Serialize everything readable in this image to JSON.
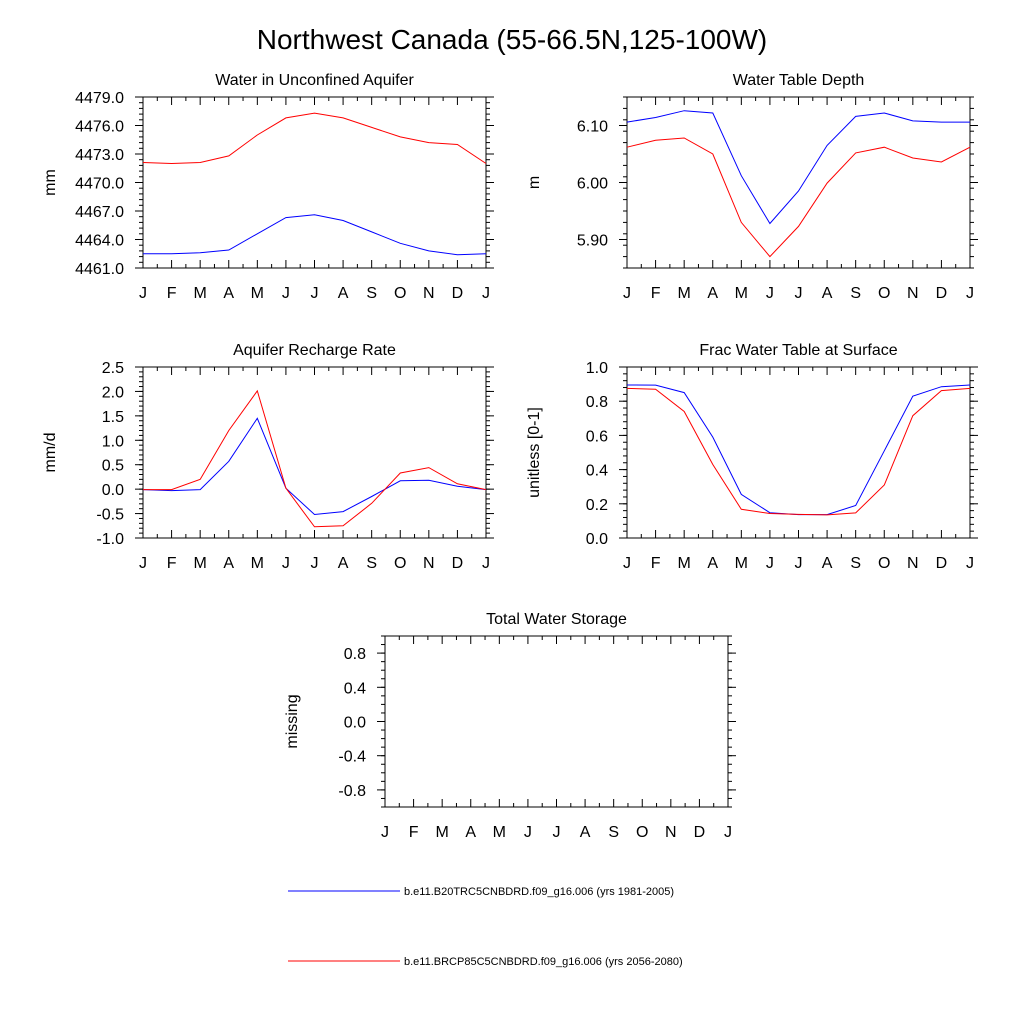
{
  "figure_title": "Northwest Canada (55-66.5N,125-100W)",
  "legend": [
    {
      "label": "b.e11.B20TRC5CNBDRD.f09_g16.006 (yrs 1981-2005)",
      "color": "#0000ff"
    },
    {
      "label": "b.e11.BRCP85C5CNBDRD.f09_g16.006 (yrs 2056-2080)",
      "color": "#ff0000"
    }
  ],
  "chart_data": [
    {
      "type": "line",
      "title": "Water in Unconfined Aquifer",
      "ylabel": "mm",
      "xlabel": "",
      "categories": [
        "J",
        "F",
        "M",
        "A",
        "M",
        "J",
        "J",
        "A",
        "S",
        "O",
        "N",
        "D",
        "J"
      ],
      "ylim": [
        4461.0,
        4479.0
      ],
      "yticks": [
        4461.0,
        4464.0,
        4467.0,
        4470.0,
        4473.0,
        4476.0,
        4479.0
      ],
      "ytick_labels": [
        "4461.0",
        "4464.0",
        "4467.0",
        "4470.0",
        "4473.0",
        "4476.0",
        "4479.0"
      ],
      "yminor": 0.6,
      "series": [
        {
          "color": "#0000ff",
          "values": [
            4462.5,
            4462.5,
            4462.6,
            4462.9,
            4464.6,
            4466.3,
            4466.6,
            4466.0,
            4464.8,
            4463.6,
            4462.8,
            4462.4,
            4462.5
          ]
        },
        {
          "color": "#ff0000",
          "values": [
            4472.1,
            4472.0,
            4472.1,
            4472.8,
            4475.0,
            4476.8,
            4477.3,
            4476.8,
            4475.8,
            4474.8,
            4474.2,
            4474.0,
            4472.0
          ]
        }
      ]
    },
    {
      "type": "line",
      "title": "Water Table Depth",
      "ylabel": "m",
      "xlabel": "",
      "categories": [
        "J",
        "F",
        "M",
        "A",
        "M",
        "J",
        "J",
        "A",
        "S",
        "O",
        "N",
        "D",
        "J"
      ],
      "ylim": [
        5.85,
        6.15
      ],
      "yticks": [
        5.9,
        6.0,
        6.1
      ],
      "ytick_labels": [
        "5.90",
        "6.00",
        "6.10"
      ],
      "yminor": 0.02,
      "series": [
        {
          "color": "#0000ff",
          "values": [
            6.106,
            6.114,
            6.126,
            6.122,
            6.012,
            5.928,
            5.985,
            6.065,
            6.116,
            6.122,
            6.108,
            6.106,
            6.106
          ]
        },
        {
          "color": "#ff0000",
          "values": [
            6.062,
            6.074,
            6.078,
            6.05,
            5.93,
            5.87,
            5.923,
            5.999,
            6.052,
            6.062,
            6.043,
            6.036,
            6.062
          ]
        }
      ]
    },
    {
      "type": "line",
      "title": "Aquifer Recharge Rate",
      "ylabel": "mm/d",
      "xlabel": "",
      "categories": [
        "J",
        "F",
        "M",
        "A",
        "M",
        "J",
        "J",
        "A",
        "S",
        "O",
        "N",
        "D",
        "J"
      ],
      "ylim": [
        -1.0,
        2.5
      ],
      "yticks": [
        -1.0,
        -0.5,
        0.0,
        0.5,
        1.0,
        1.5,
        2.0,
        2.5
      ],
      "ytick_labels": [
        "-1.0",
        "-0.5",
        "0.0",
        "0.5",
        "1.0",
        "1.5",
        "2.0",
        "2.5"
      ],
      "yminor": 0.1,
      "series": [
        {
          "color": "#0000ff",
          "values": [
            -0.01,
            -0.03,
            -0.01,
            0.57,
            1.45,
            0.02,
            -0.52,
            -0.46,
            -0.15,
            0.17,
            0.18,
            0.06,
            -0.01
          ]
        },
        {
          "color": "#ff0000",
          "values": [
            -0.01,
            -0.01,
            0.2,
            1.2,
            2.01,
            0.02,
            -0.77,
            -0.75,
            -0.29,
            0.33,
            0.44,
            0.11,
            -0.01
          ]
        }
      ]
    },
    {
      "type": "line",
      "title": "Frac Water Table at Surface",
      "ylabel": "unitless [0-1]",
      "xlabel": "",
      "categories": [
        "J",
        "F",
        "M",
        "A",
        "M",
        "J",
        "J",
        "A",
        "S",
        "O",
        "N",
        "D",
        "J"
      ],
      "ylim": [
        0.0,
        1.0
      ],
      "yticks": [
        0.0,
        0.2,
        0.4,
        0.6,
        0.8,
        1.0
      ],
      "ytick_labels": [
        "0.0",
        "0.2",
        "0.4",
        "0.6",
        "0.8",
        "1.0"
      ],
      "yminor": 0.04,
      "series": [
        {
          "color": "#0000ff",
          "values": [
            0.895,
            0.894,
            0.85,
            0.59,
            0.255,
            0.148,
            0.137,
            0.137,
            0.19,
            0.51,
            0.83,
            0.885,
            0.895
          ]
        },
        {
          "color": "#ff0000",
          "values": [
            0.875,
            0.87,
            0.74,
            0.43,
            0.168,
            0.143,
            0.138,
            0.135,
            0.147,
            0.31,
            0.715,
            0.862,
            0.875
          ]
        }
      ]
    },
    {
      "type": "line",
      "title": "Total Water Storage",
      "ylabel": "missing",
      "xlabel": "",
      "categories": [
        "J",
        "F",
        "M",
        "A",
        "M",
        "J",
        "J",
        "A",
        "S",
        "O",
        "N",
        "D",
        "J"
      ],
      "ylim": [
        -1.0,
        1.0
      ],
      "yticks": [
        -0.8,
        -0.4,
        0.0,
        0.4,
        0.8
      ],
      "ytick_labels": [
        "-0.8",
        "-0.4",
        "0.0",
        "0.4",
        "0.8"
      ],
      "yminor": 0.1,
      "series": []
    }
  ]
}
